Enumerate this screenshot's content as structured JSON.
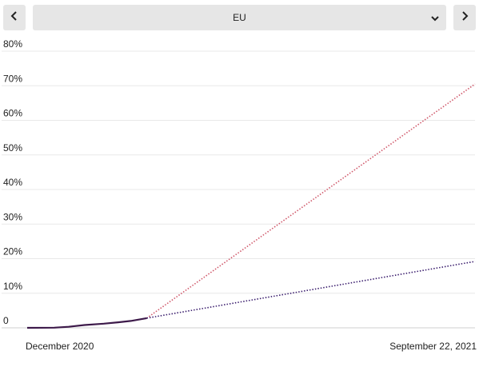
{
  "selector": {
    "value": "EU"
  },
  "icons": {
    "prev": "chevron-left-icon",
    "next": "chevron-right-icon",
    "dropdown": "chevron-down-icon"
  },
  "chart_data": {
    "type": "line",
    "x_range": [
      "December 2020",
      "September 22, 2021"
    ],
    "x_tick_labels": [
      "December 2020",
      "September 22, 2021"
    ],
    "y_tick_labels": [
      "0",
      "10%",
      "20%",
      "30%",
      "40%",
      "50%",
      "60%",
      "70%",
      "80%"
    ],
    "ylim": [
      0,
      80
    ],
    "grid": true,
    "series": [
      {
        "style": "solid",
        "color": "#3d1a4a",
        "x": [
          "2020-12-15",
          "2021-01-01",
          "2021-01-10",
          "2021-01-20",
          "2021-02-01",
          "2021-02-10",
          "2021-02-18",
          "2021-02-28"
        ],
        "y": [
          0.0,
          0.05,
          0.3,
          0.8,
          1.2,
          1.6,
          2.0,
          2.8
        ]
      },
      {
        "style": "dotted",
        "color": "#d0596b",
        "x": [
          "2021-02-28",
          "2021-09-22"
        ],
        "y": [
          2.8,
          70.5
        ]
      },
      {
        "style": "dotted",
        "color": "#3b1e6e",
        "x": [
          "2021-02-28",
          "2021-09-22"
        ],
        "y": [
          2.8,
          19.2
        ]
      }
    ]
  }
}
